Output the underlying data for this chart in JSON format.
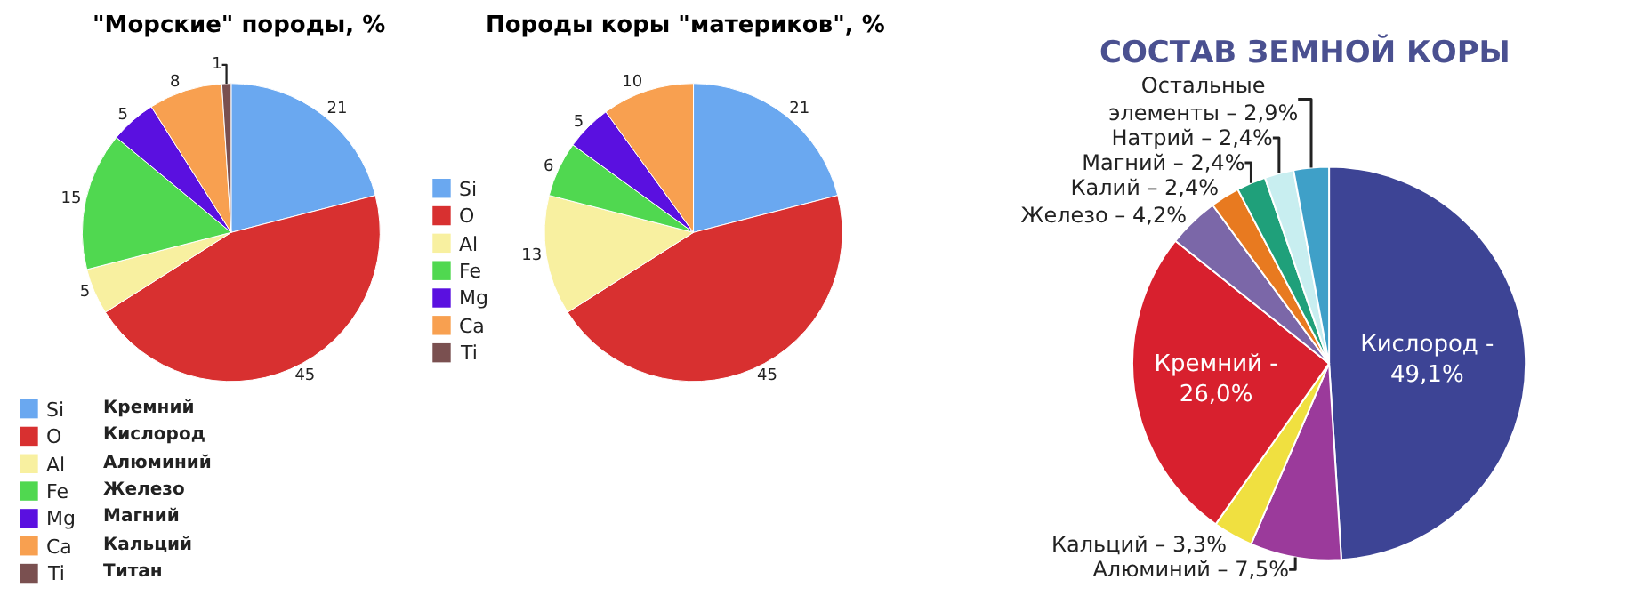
{
  "chart_data": [
    {
      "type": "pie",
      "title": "\"Морские\" породы, %",
      "categories": [
        "Si",
        "O",
        "Al",
        "Fe",
        "Mg",
        "Ca",
        "Ti"
      ],
      "values": [
        21,
        45,
        5,
        15,
        5,
        8,
        1
      ],
      "colors": [
        "#6aa8f0",
        "#d83030",
        "#f8f0a0",
        "#50d850",
        "#5a10e0",
        "#f8a050",
        "#7a5050"
      ],
      "data_labels": true,
      "legend": "bottom",
      "annotations": [
        "Кремний",
        "Кислород",
        "Алюминий",
        "Железо",
        "Магний",
        "Кальций",
        "Титан"
      ]
    },
    {
      "type": "pie",
      "title": "Породы коры \"материков\", %",
      "categories": [
        "Si",
        "O",
        "Al",
        "Fe",
        "Mg",
        "Ca",
        "Ti"
      ],
      "values": [
        21,
        45,
        13,
        6,
        5,
        10,
        0
      ],
      "colors": [
        "#6aa8f0",
        "#d83030",
        "#f8f0a0",
        "#50d850",
        "#5a10e0",
        "#f8a050",
        "#7a5050"
      ],
      "value_labels": [
        "21",
        "45",
        "13",
        "6",
        "5",
        "10",
        null
      ],
      "legend": "left"
    },
    {
      "type": "pie",
      "title": "СОСТАВ ЗЕМНОЙ КОРЫ",
      "categories": [
        "Кислород -",
        "Алюминий –",
        "Кальций –",
        "Кремний -",
        "Железо –",
        "Калий –",
        "Магний –",
        "Натрий –",
        "Остальные элементы –"
      ],
      "values": [
        49.1,
        7.5,
        3.3,
        26.0,
        4.2,
        2.4,
        2.4,
        2.4,
        2.9
      ],
      "colors": [
        "#3d4495",
        "#9b3a9b",
        "#f0e040",
        "#d8202e",
        "#7b67a8",
        "#e87a20",
        "#1fa07a",
        "#c8eef0",
        "#3fa0c8"
      ],
      "value_labels": [
        "49,1%",
        "7,5%",
        "3,3%",
        "26,0%",
        "4,2%",
        "2,4%",
        "2,4%",
        "2,4%",
        "2,9%"
      ]
    }
  ]
}
